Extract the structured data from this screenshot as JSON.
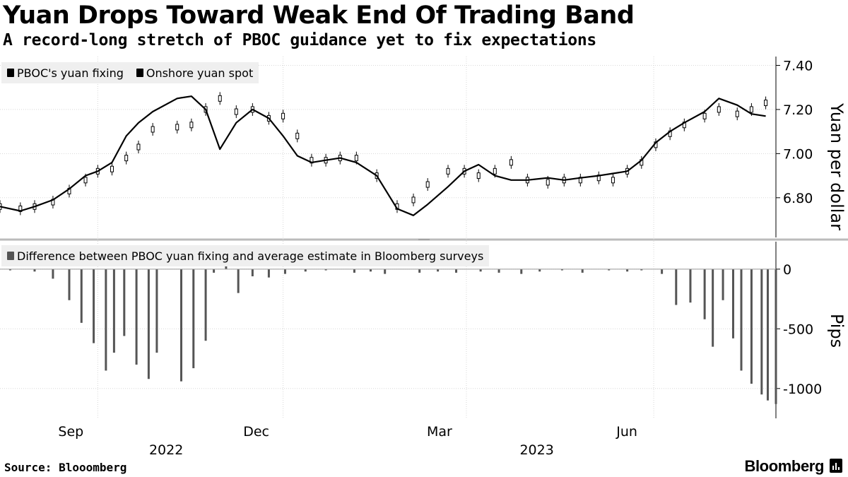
{
  "header": {
    "title": "Yuan Drops Toward Weak End Of Trading Band",
    "subtitle": "A record-long stretch of PBOC guidance yet to fix expectations"
  },
  "footer": {
    "source": "Source: Blooomberg",
    "brand": "Bloomberg"
  },
  "colors": {
    "fixing": "#000000",
    "spot": "#000000",
    "difference": "#555555",
    "legend_bg": "#efefef",
    "grid": "#cccccc"
  },
  "chart_data": [
    {
      "type": "line",
      "ylabel": "Yuan per dollar",
      "ylim": [
        6.62,
        7.44
      ],
      "yticks": [
        6.8,
        7.0,
        7.2,
        7.4
      ],
      "ytick_labels": [
        "6.80",
        "7.00",
        "7.20",
        "7.40"
      ],
      "xlim": [
        "2022-07-15",
        "2023-07-31"
      ],
      "legend": {
        "placement": "top-left",
        "entries": [
          "PBOC's yuan fixing",
          "Onshore yuan spot"
        ]
      },
      "series": [
        {
          "name": "PBOC's yuan fixing",
          "style": "candlestick",
          "x": [
            "2022-07-15",
            "2022-07-25",
            "2022-08-01",
            "2022-08-10",
            "2022-08-18",
            "2022-08-26",
            "2022-09-01",
            "2022-09-08",
            "2022-09-15",
            "2022-09-21",
            "2022-09-28",
            "2022-10-10",
            "2022-10-17",
            "2022-10-24",
            "2022-10-31",
            "2022-11-08",
            "2022-11-16",
            "2022-11-24",
            "2022-12-01",
            "2022-12-08",
            "2022-12-15",
            "2022-12-22",
            "2022-12-29",
            "2023-01-06",
            "2023-01-16",
            "2023-01-26",
            "2023-02-03",
            "2023-02-10",
            "2023-02-20",
            "2023-02-28",
            "2023-03-07",
            "2023-03-15",
            "2023-03-23",
            "2023-03-31",
            "2023-04-10",
            "2023-04-18",
            "2023-04-26",
            "2023-05-05",
            "2023-05-12",
            "2023-05-19",
            "2023-05-26",
            "2023-06-02",
            "2023-06-09",
            "2023-06-16",
            "2023-06-26",
            "2023-07-03",
            "2023-07-12",
            "2023-07-19",
            "2023-07-26"
          ],
          "values": [
            6.76,
            6.75,
            6.76,
            6.78,
            6.83,
            6.88,
            6.92,
            6.93,
            6.98,
            7.03,
            7.11,
            7.12,
            7.13,
            7.2,
            7.25,
            7.19,
            7.2,
            7.16,
            7.17,
            7.08,
            6.97,
            6.97,
            6.98,
            6.98,
            6.9,
            6.76,
            6.79,
            6.86,
            6.92,
            6.92,
            6.9,
            6.92,
            6.96,
            6.88,
            6.87,
            6.88,
            6.88,
            6.89,
            6.88,
            6.92,
            6.96,
            7.04,
            7.09,
            7.13,
            7.17,
            7.2,
            7.18,
            7.2,
            7.23
          ]
        },
        {
          "name": "Onshore yuan spot",
          "style": "line",
          "x": [
            "2022-07-15",
            "2022-07-25",
            "2022-08-01",
            "2022-08-10",
            "2022-08-18",
            "2022-08-26",
            "2022-09-01",
            "2022-09-08",
            "2022-09-15",
            "2022-09-21",
            "2022-09-28",
            "2022-10-10",
            "2022-10-17",
            "2022-10-24",
            "2022-10-31",
            "2022-11-08",
            "2022-11-16",
            "2022-11-24",
            "2022-12-01",
            "2022-12-08",
            "2022-12-15",
            "2022-12-22",
            "2022-12-29",
            "2023-01-06",
            "2023-01-16",
            "2023-01-26",
            "2023-02-03",
            "2023-02-10",
            "2023-02-20",
            "2023-02-28",
            "2023-03-07",
            "2023-03-15",
            "2023-03-23",
            "2023-03-31",
            "2023-04-10",
            "2023-04-18",
            "2023-04-26",
            "2023-05-05",
            "2023-05-12",
            "2023-05-19",
            "2023-05-26",
            "2023-06-02",
            "2023-06-09",
            "2023-06-16",
            "2023-06-26",
            "2023-07-03",
            "2023-07-12",
            "2023-07-19",
            "2023-07-26"
          ],
          "values": [
            6.76,
            6.74,
            6.76,
            6.79,
            6.84,
            6.9,
            6.92,
            6.96,
            7.08,
            7.14,
            7.19,
            7.25,
            7.26,
            7.2,
            7.02,
            7.14,
            7.2,
            7.16,
            7.08,
            6.99,
            6.96,
            6.97,
            6.98,
            6.96,
            6.9,
            6.75,
            6.72,
            6.77,
            6.85,
            6.92,
            6.95,
            6.9,
            6.88,
            6.88,
            6.89,
            6.88,
            6.89,
            6.9,
            6.91,
            6.92,
            6.97,
            7.05,
            7.1,
            7.14,
            7.19,
            7.25,
            7.22,
            7.18,
            7.17
          ]
        }
      ]
    },
    {
      "type": "bar",
      "ylabel": "Pips",
      "ylim": [
        -1250,
        230
      ],
      "yticks": [
        0,
        -500,
        -1000
      ],
      "ytick_labels": [
        "0",
        "-500",
        "-1000"
      ],
      "xlim": [
        "2022-07-15",
        "2023-07-31"
      ],
      "legend": {
        "placement": "top-left",
        "entries": [
          "Difference between PBOC yuan fixing and average estimate in Bloomberg surveys"
        ]
      },
      "series": [
        {
          "name": "Difference between PBOC yuan fixing and average estimate in Bloomberg surveys",
          "x": [
            "2022-07-20",
            "2022-08-01",
            "2022-08-10",
            "2022-08-18",
            "2022-08-24",
            "2022-08-30",
            "2022-09-05",
            "2022-09-09",
            "2022-09-14",
            "2022-09-20",
            "2022-09-26",
            "2022-09-30",
            "2022-10-12",
            "2022-10-18",
            "2022-10-24",
            "2022-10-28",
            "2022-11-03",
            "2022-11-09",
            "2022-11-16",
            "2022-11-24",
            "2022-12-02",
            "2022-12-12",
            "2022-12-22",
            "2023-01-05",
            "2023-01-13",
            "2023-01-20",
            "2023-02-06",
            "2023-02-15",
            "2023-02-24",
            "2023-03-08",
            "2023-03-17",
            "2023-03-28",
            "2023-04-06",
            "2023-04-17",
            "2023-04-27",
            "2023-05-10",
            "2023-05-19",
            "2023-05-26",
            "2023-06-05",
            "2023-06-12",
            "2023-06-19",
            "2023-06-26",
            "2023-06-30",
            "2023-07-05",
            "2023-07-10",
            "2023-07-14",
            "2023-07-19",
            "2023-07-24",
            "2023-07-27",
            "2023-07-31"
          ],
          "values": [
            -10,
            -20,
            -80,
            -260,
            -450,
            -620,
            -850,
            -700,
            -560,
            -800,
            -920,
            -700,
            -940,
            -830,
            -600,
            -30,
            160,
            -200,
            -60,
            -70,
            -40,
            -20,
            -10,
            -30,
            -20,
            -40,
            -30,
            -20,
            -30,
            -20,
            -30,
            -40,
            -20,
            -10,
            -30,
            -10,
            -20,
            -10,
            -40,
            -300,
            -280,
            -420,
            -650,
            -260,
            -580,
            -850,
            -960,
            -1050,
            -1100,
            -1130
          ]
        }
      ]
    }
  ],
  "x_axis": {
    "month_labels": [
      {
        "label": "Sep",
        "date": "2022-09-01"
      },
      {
        "label": "Dec",
        "date": "2022-12-01"
      },
      {
        "label": "Mar",
        "date": "2023-03-01"
      },
      {
        "label": "Jun",
        "date": "2023-06-01"
      }
    ],
    "year_labels": [
      {
        "label": "2022",
        "date": "2022-10-15"
      },
      {
        "label": "2023",
        "date": "2023-04-15"
      }
    ]
  }
}
